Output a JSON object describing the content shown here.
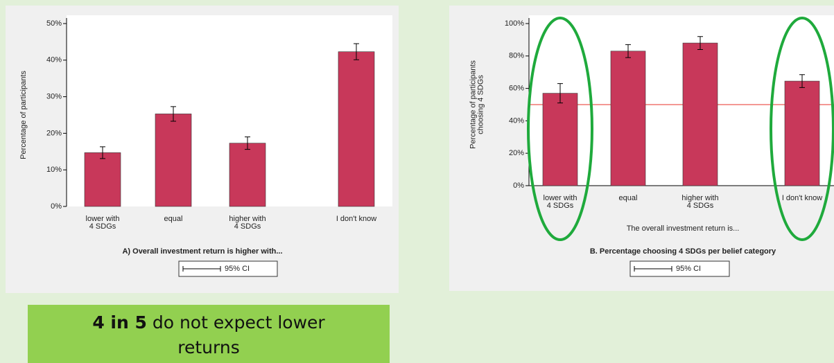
{
  "chart_data": [
    {
      "type": "bar",
      "title": "A) Overall investment return is higher with...",
      "ylabel": "Percentage of participants",
      "categories": [
        "lower with\n4 SDGs",
        "equal",
        "higher with\n4 SDGs",
        "I don't know"
      ],
      "values": [
        14.7,
        25.3,
        17.3,
        42.3
      ],
      "errors": [
        1.6,
        2.0,
        1.7,
        2.2
      ],
      "color": "#c8385a",
      "ylim": [
        0,
        50
      ],
      "yticks": [
        {
          "value": 0,
          "label": "0%"
        },
        {
          "value": 10,
          "label": "10%"
        },
        {
          "value": 20,
          "label": "20%"
        },
        {
          "value": 30,
          "label": "30%"
        },
        {
          "value": 40,
          "label": "40%"
        },
        {
          "value": 50,
          "label": "50%"
        }
      ],
      "grid": false,
      "legend": "95% CI"
    },
    {
      "type": "bar",
      "title": "B. Percentage choosing 4 SDGs per belief category",
      "ylabel": "Percentage of participants\nchoosing 4 SDGs",
      "xlabel": "The overall investment return is...",
      "categories": [
        "lower with\n4 SDGs",
        "equal",
        "higher with\n4 SDGs",
        "I don't know"
      ],
      "values": [
        57,
        83,
        88,
        64.5
      ],
      "errors": [
        6,
        4,
        4,
        4
      ],
      "color": "#c8385a",
      "ylim": [
        0,
        100
      ],
      "yticks": [
        {
          "value": 0,
          "label": "0%"
        },
        {
          "value": 20,
          "label": "20%"
        },
        {
          "value": 40,
          "label": "40%"
        },
        {
          "value": 60,
          "label": "60%"
        },
        {
          "value": 80,
          "label": "80%"
        },
        {
          "value": 100,
          "label": "100%"
        }
      ],
      "hline": {
        "value": 50,
        "color": "#e8322a"
      },
      "grid": false,
      "legend": "95% CI"
    }
  ],
  "callout": {
    "bold": "4 in 5",
    "text": "do not expect lower returns"
  }
}
